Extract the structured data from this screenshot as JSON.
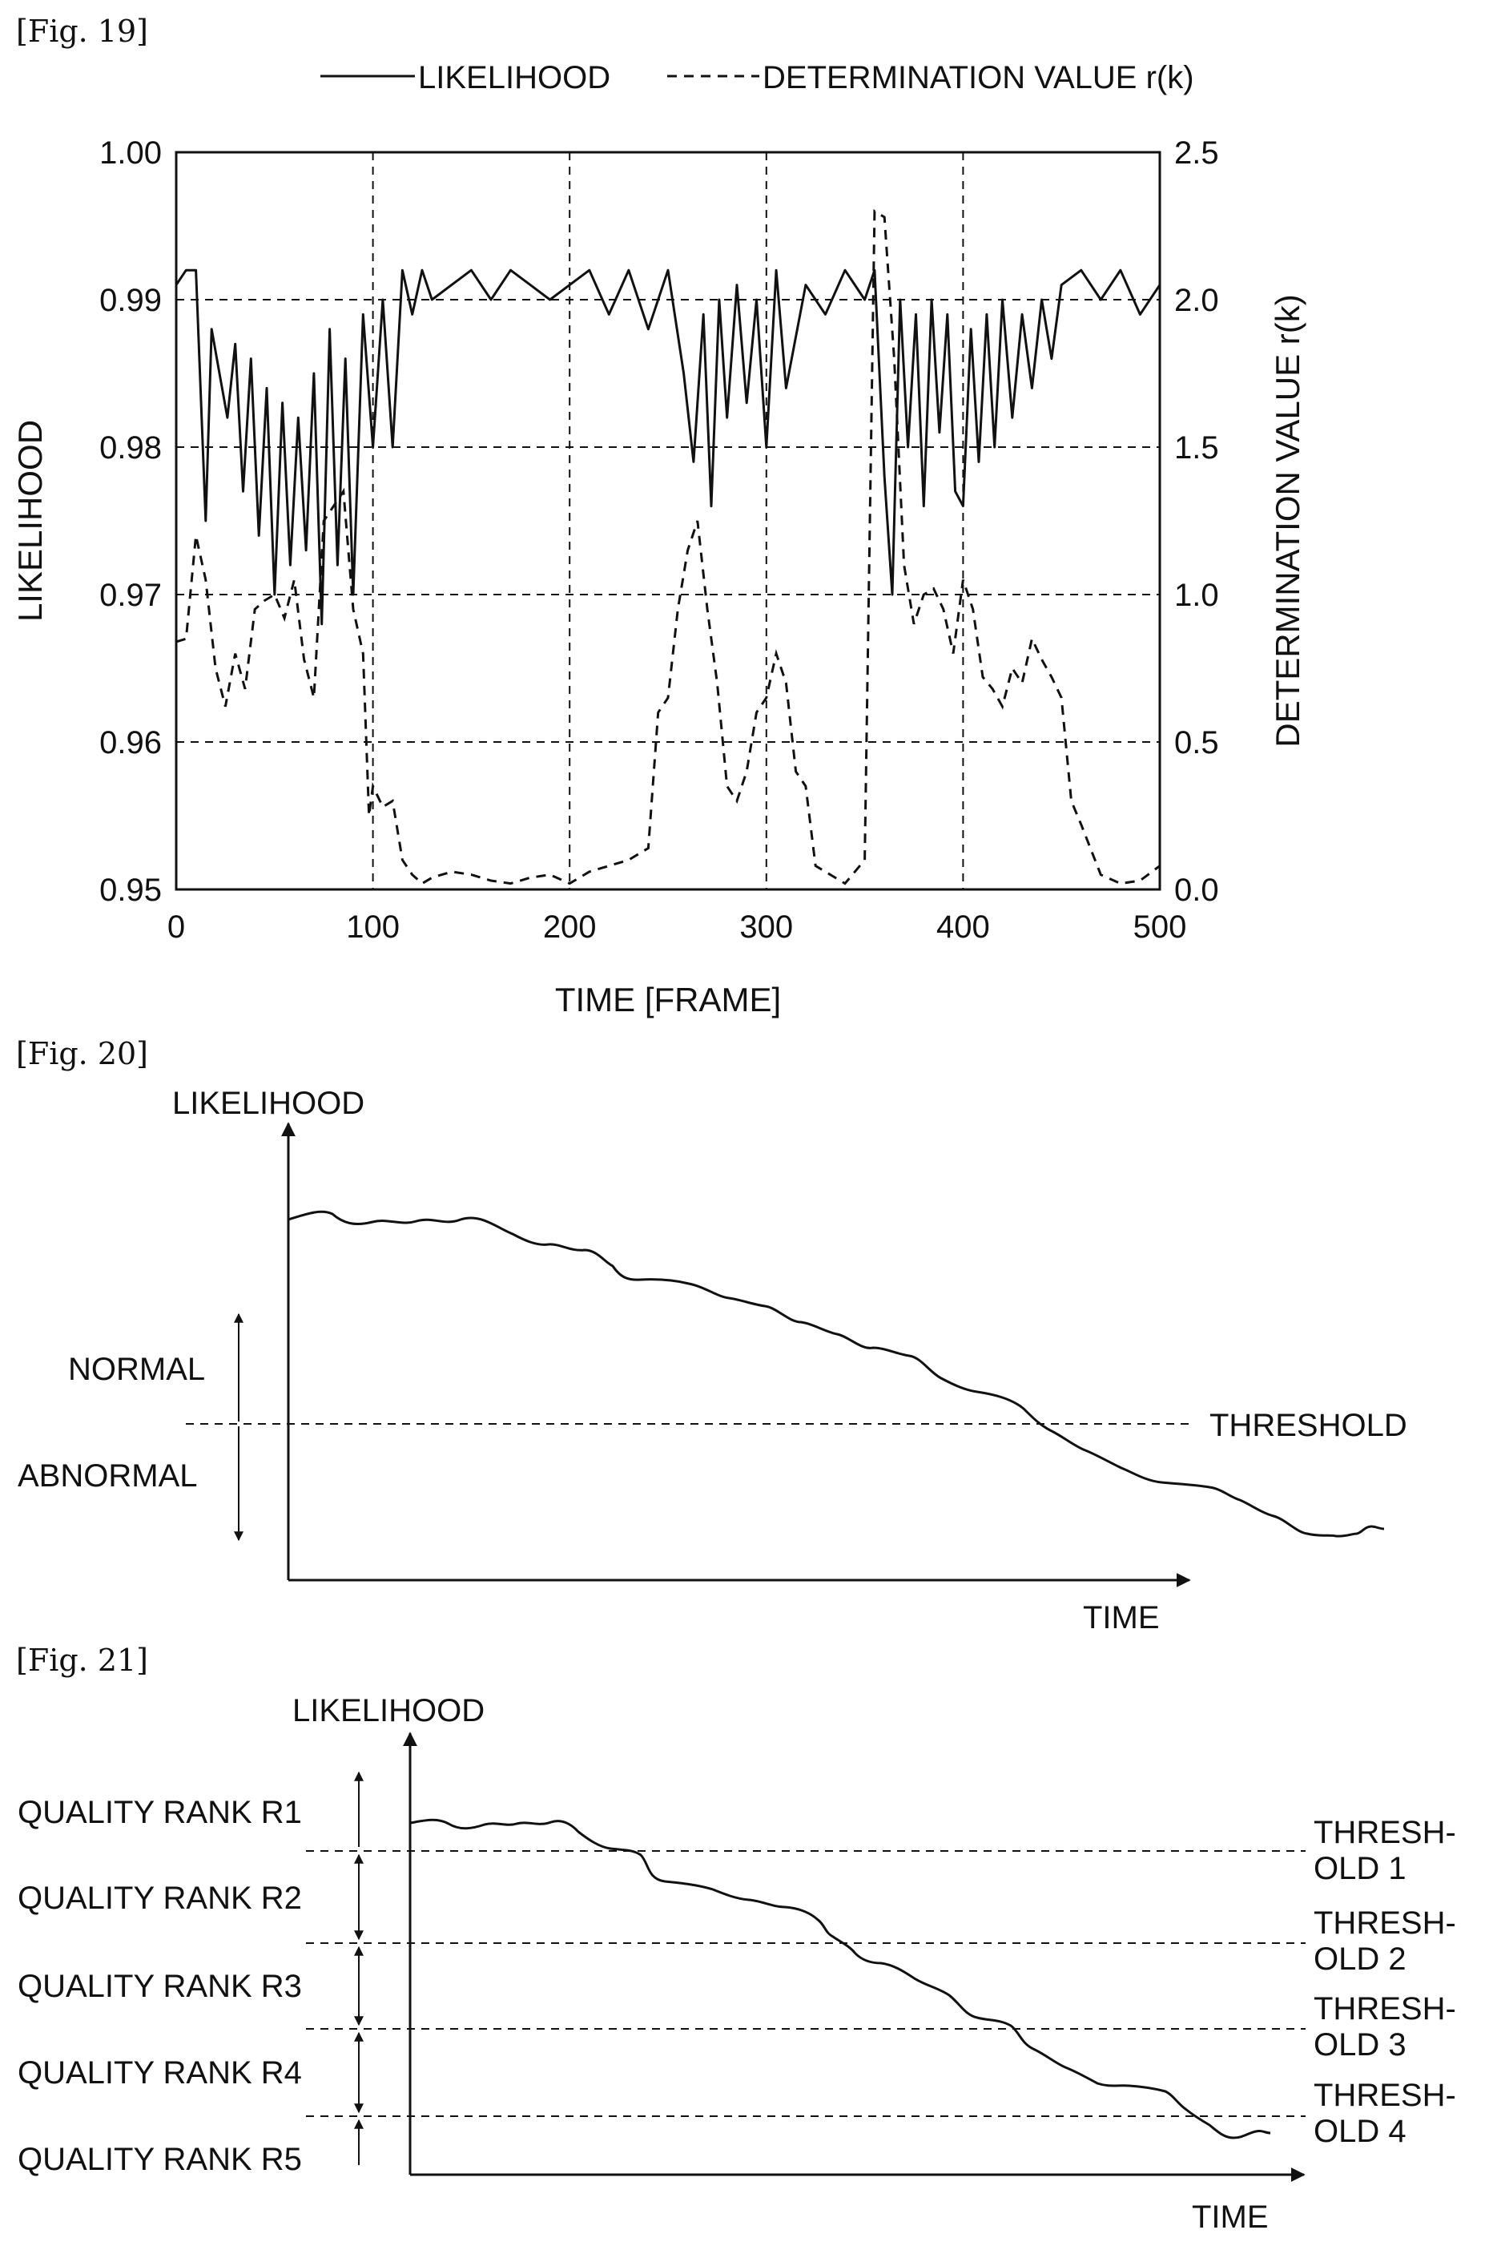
{
  "fig19": {
    "label": "[Fig. 19]",
    "legend": {
      "solid": "LIKELIHOOD",
      "dashed": "DETERMINATION VALUE r(k)"
    },
    "chart_data": {
      "type": "line",
      "title": "",
      "xlabel": "TIME [FRAME]",
      "ylabel_left": "LIKELIHOOD",
      "ylabel_right": "DETERMINATION VALUE r(k)",
      "xlim": [
        0,
        500
      ],
      "ylim_left": [
        0.95,
        1.0
      ],
      "ylim_right": [
        0.0,
        2.5
      ],
      "x_ticks": [
        "0",
        "100",
        "200",
        "300",
        "400",
        "500"
      ],
      "y_ticks_left": [
        "0.95",
        "0.96",
        "0.97",
        "0.98",
        "0.99",
        "1.00"
      ],
      "y_ticks_right": [
        "0.0",
        "0.5",
        "1.0",
        "1.5",
        "2.0",
        "2.5"
      ],
      "grid": "dashed",
      "legend_position": "top",
      "series": [
        {
          "name": "LIKELIHOOD",
          "axis": "left",
          "style": "solid",
          "x": [
            0,
            5,
            10,
            15,
            18,
            22,
            26,
            30,
            34,
            38,
            42,
            46,
            50,
            54,
            58,
            62,
            66,
            70,
            74,
            78,
            82,
            86,
            90,
            95,
            100,
            105,
            110,
            115,
            120,
            125,
            130,
            140,
            150,
            160,
            170,
            180,
            190,
            200,
            210,
            220,
            230,
            240,
            250,
            258,
            263,
            268,
            272,
            276,
            280,
            285,
            290,
            295,
            300,
            305,
            310,
            320,
            330,
            340,
            350,
            355,
            360,
            364,
            368,
            372,
            376,
            380,
            384,
            388,
            392,
            396,
            400,
            404,
            408,
            412,
            416,
            420,
            425,
            430,
            435,
            440,
            445,
            450,
            460,
            470,
            480,
            490,
            500
          ],
          "y": [
            0.991,
            0.992,
            0.992,
            0.975,
            0.988,
            0.985,
            0.982,
            0.987,
            0.977,
            0.986,
            0.974,
            0.984,
            0.97,
            0.983,
            0.972,
            0.982,
            0.973,
            0.985,
            0.968,
            0.988,
            0.972,
            0.986,
            0.97,
            0.989,
            0.98,
            0.99,
            0.98,
            0.992,
            0.989,
            0.992,
            0.99,
            0.991,
            0.992,
            0.99,
            0.992,
            0.991,
            0.99,
            0.991,
            0.992,
            0.989,
            0.992,
            0.988,
            0.992,
            0.985,
            0.979,
            0.989,
            0.976,
            0.99,
            0.982,
            0.991,
            0.983,
            0.99,
            0.98,
            0.992,
            0.984,
            0.991,
            0.989,
            0.992,
            0.99,
            0.992,
            0.978,
            0.97,
            0.99,
            0.98,
            0.989,
            0.976,
            0.99,
            0.981,
            0.989,
            0.977,
            0.976,
            0.988,
            0.979,
            0.989,
            0.98,
            0.99,
            0.982,
            0.989,
            0.984,
            0.99,
            0.986,
            0.991,
            0.992,
            0.99,
            0.992,
            0.989,
            0.991
          ]
        },
        {
          "name": "DETERMINATION VALUE r(k)",
          "axis": "right",
          "style": "dashed",
          "x": [
            0,
            5,
            10,
            15,
            20,
            25,
            30,
            35,
            40,
            45,
            50,
            55,
            60,
            65,
            70,
            75,
            80,
            85,
            90,
            95,
            98,
            100,
            105,
            110,
            115,
            120,
            125,
            130,
            140,
            150,
            160,
            170,
            180,
            190,
            200,
            210,
            220,
            230,
            240,
            245,
            250,
            255,
            260,
            265,
            270,
            275,
            280,
            285,
            290,
            295,
            300,
            305,
            310,
            315,
            320,
            325,
            330,
            340,
            350,
            355,
            360,
            365,
            370,
            375,
            380,
            385,
            390,
            395,
            400,
            405,
            410,
            415,
            420,
            425,
            430,
            435,
            440,
            445,
            450,
            455,
            460,
            470,
            480,
            490,
            500
          ],
          "y": [
            0.84,
            0.85,
            1.2,
            1.05,
            0.75,
            0.62,
            0.8,
            0.68,
            0.95,
            0.98,
            1.0,
            0.92,
            1.05,
            0.78,
            0.65,
            1.25,
            1.3,
            1.35,
            0.95,
            0.8,
            0.25,
            0.35,
            0.28,
            0.3,
            0.1,
            0.05,
            0.02,
            0.04,
            0.06,
            0.05,
            0.03,
            0.02,
            0.04,
            0.05,
            0.02,
            0.06,
            0.08,
            0.1,
            0.14,
            0.6,
            0.65,
            0.95,
            1.15,
            1.25,
            0.95,
            0.7,
            0.35,
            0.3,
            0.4,
            0.6,
            0.65,
            0.8,
            0.7,
            0.4,
            0.35,
            0.08,
            0.06,
            0.02,
            0.1,
            2.3,
            2.28,
            1.8,
            1.1,
            0.9,
            1.0,
            1.02,
            0.95,
            0.8,
            1.05,
            0.95,
            0.72,
            0.68,
            0.62,
            0.75,
            0.7,
            0.85,
            0.78,
            0.72,
            0.65,
            0.3,
            0.22,
            0.05,
            0.02,
            0.03,
            0.08
          ]
        }
      ]
    }
  },
  "fig20": {
    "label": "[Fig. 20]",
    "y_axis_label": "LIKELIHOOD",
    "x_axis_label": "TIME",
    "normal_label": "NORMAL",
    "abnormal_label": "ABNORMAL",
    "threshold_label": "THRESHOLD"
  },
  "fig21": {
    "label": "[Fig. 21]",
    "y_axis_label": "LIKELIHOOD",
    "x_axis_label": "TIME",
    "ranks": [
      "QUALITY RANK R1",
      "QUALITY RANK R2",
      "QUALITY RANK R3",
      "QUALITY RANK R4",
      "QUALITY RANK R5"
    ],
    "thresholds": [
      {
        "line1": "THRESH-",
        "line2": "OLD 1"
      },
      {
        "line1": "THRESH-",
        "line2": "OLD 2"
      },
      {
        "line1": "THRESH-",
        "line2": "OLD 3"
      },
      {
        "line1": "THRESH-",
        "line2": "OLD 4"
      }
    ]
  }
}
